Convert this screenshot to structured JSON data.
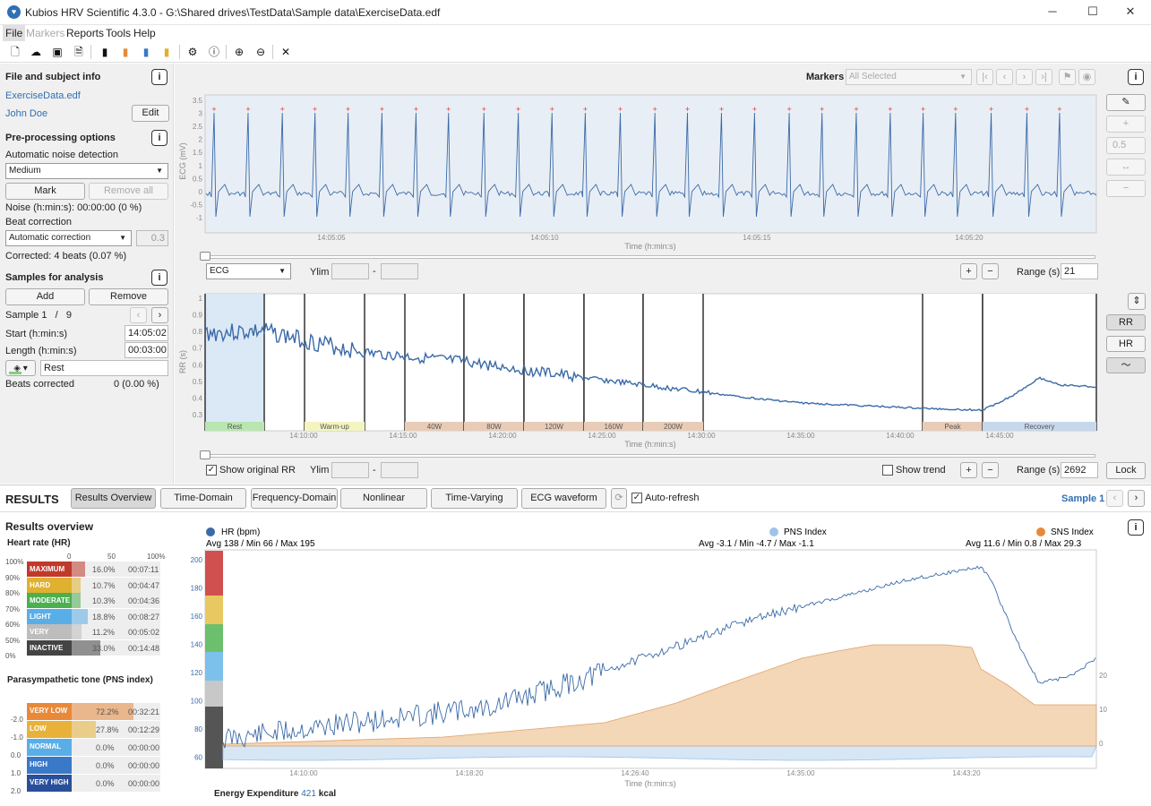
{
  "window": {
    "title": "Kubios HRV Scientific 4.3.0 - G:\\Shared drives\\TestData\\Sample data\\ExerciseData.edf",
    "minimize": "─",
    "maximize": "☐",
    "close": "✕"
  },
  "menu": [
    "File",
    "Markers",
    "Reports",
    "Tools",
    "Help"
  ],
  "left": {
    "file_title": "File and subject info",
    "file_name": "ExerciseData.edf",
    "subject": "John Doe",
    "edit": "Edit",
    "pre_title": "Pre-processing options",
    "noise_label": "Automatic noise detection",
    "noise_value": "Medium",
    "mark": "Mark",
    "remove_all": "Remove all",
    "noise_text": "Noise (h:min:s): 00:00:00 (0 %)",
    "beat_label": "Beat correction",
    "beat_value": "Automatic correction",
    "beat_threshold": "0.3",
    "corrected": "Corrected: 4 beats (0.07 %)",
    "samples_title": "Samples for analysis",
    "add": "Add",
    "remove": "Remove",
    "sample_label": "Sample 1",
    "sample_sep": "/",
    "sample_total": "9",
    "start_label": "Start (h:min:s)",
    "start_value": "14:05:02",
    "length_label": "Length (h:min:s)",
    "length_value": "00:03:00",
    "sample_name": "Rest",
    "beats_label": "Beats corrected",
    "beats_value": "0 (0.00 %)"
  },
  "markers": {
    "label": "Markers",
    "select": "All Selected"
  },
  "ecg": {
    "ylabel": "ECG (mV)",
    "xlabel": "Time (h:min:s)",
    "yticks": [
      "3.5",
      "3",
      "2.5",
      "2",
      "1.5",
      "1",
      "0.5",
      "0",
      "-0.5",
      "-1"
    ],
    "xticks": [
      "14:05:05",
      "14:05:10",
      "14:05:15",
      "14:05:20"
    ],
    "channel": "ECG",
    "ylim": "Ylim",
    "range_label": "Range (s)",
    "range": "21",
    "dash": "-",
    "plus": "+",
    "minus": "−"
  },
  "rr": {
    "ylabel": "RR (s)",
    "xlabel": "Time (h:min:s)",
    "yticks": [
      "1",
      "0.9",
      "0.8",
      "0.7",
      "0.6",
      "0.5",
      "0.4",
      "0.3"
    ],
    "xticks": [
      "14:10:00",
      "14:15:00",
      "14:20:00",
      "14:25:00",
      "14:30:00",
      "14:35:00",
      "14:40:00",
      "14:45:00"
    ],
    "segments": [
      "Rest",
      "Warm-up",
      "40W",
      "80W",
      "120W",
      "160W",
      "200W",
      "Peak",
      "Recovery"
    ],
    "show_original": "Show original RR",
    "show_trend": "Show trend",
    "ylim": "Ylim",
    "range_label": "Range (s)",
    "range": "2692",
    "lock": "Lock",
    "dash": "-",
    "plus": "+",
    "minus": "−"
  },
  "side": {
    "value": "0.5",
    "rr": "RR",
    "hr": "HR"
  },
  "results": {
    "title": "RESULTS",
    "tabs": [
      "Results Overview",
      "Time-Domain",
      "Frequency-Domain",
      "Nonlinear",
      "Time-Varying",
      "ECG waveform"
    ],
    "autorefresh": "Auto-refresh",
    "sample": "Sample 1"
  },
  "overview": {
    "title": "Results overview",
    "hr_title": "Heart rate (HR)",
    "scale": [
      "0",
      "50",
      "100%"
    ],
    "pct_ticks": [
      "100%",
      "90%",
      "80%",
      "70%",
      "60%",
      "50%",
      "0%"
    ],
    "zones": [
      {
        "name": "MAXIMUM",
        "pct": "16.0%",
        "time": "00:07:11",
        "color": "#c0392b",
        "val": 16.0
      },
      {
        "name": "HARD",
        "pct": "10.7%",
        "time": "00:04:47",
        "color": "#e0b030",
        "val": 10.7
      },
      {
        "name": "MODERATE",
        "pct": "10.3%",
        "time": "00:04:36",
        "color": "#4caf50",
        "val": 10.3
      },
      {
        "name": "LIGHT",
        "pct": "18.8%",
        "time": "00:08:27",
        "color": "#5aaee8",
        "val": 18.8
      },
      {
        "name": "VERY LIGHT",
        "pct": "11.2%",
        "time": "00:05:02",
        "color": "#bdbdbd",
        "val": 11.2
      },
      {
        "name": "INACTIVE",
        "pct": "33.0%",
        "time": "00:14:48",
        "color": "#444",
        "val": 33.0
      }
    ],
    "pns_title": "Parasympathetic tone (PNS index)",
    "pns_ticks": [
      "-2.0",
      "-1.0",
      "0.0",
      "1.0",
      "2.0"
    ],
    "pns": [
      {
        "name": "VERY LOW",
        "pct": "72.2%",
        "time": "00:32:21",
        "color": "#e8893a",
        "val": 72.2
      },
      {
        "name": "LOW",
        "pct": "27.8%",
        "time": "00:12:29",
        "color": "#e8b23a",
        "val": 27.8
      },
      {
        "name": "NORMAL",
        "pct": "0.0%",
        "time": "00:00:00",
        "color": "#5aaee8",
        "val": 0
      },
      {
        "name": "HIGH",
        "pct": "0.0%",
        "time": "00:00:00",
        "color": "#3a78c8",
        "val": 0
      },
      {
        "name": "VERY HIGH",
        "pct": "0.0%",
        "time": "00:00:00",
        "color": "#2a4f9a",
        "val": 0
      }
    ],
    "energy_label": "Energy Expenditure",
    "energy_value": "421",
    "energy_unit": "kcal"
  },
  "trend": {
    "hr_legend": "HR  (bpm)",
    "hr_stats": "Avg  138  /  Min  66  /  Max  195",
    "pns_legend": "PNS  Index",
    "pns_stats": "Avg  -3.1  /  Min  -4.7  /  Max  -1.1",
    "sns_legend": "SNS  Index",
    "sns_stats": "Avg  11.6  /  Min  0.8  /  Max  29.3",
    "yticks": [
      "200",
      "180",
      "160",
      "140",
      "120",
      "100",
      "80",
      "60"
    ],
    "rticks": [
      "20",
      "10",
      "0"
    ],
    "xticks": [
      "14:10:00",
      "14:18:20",
      "14:26:40",
      "14:35:00",
      "14:43:20"
    ],
    "xlabel": "Time (h:min:s)"
  },
  "colors": {
    "accent": "#2f6fb4",
    "hr": "#3a6aa8",
    "sns": "#e8b88a",
    "pns": "#9ec3e6"
  }
}
